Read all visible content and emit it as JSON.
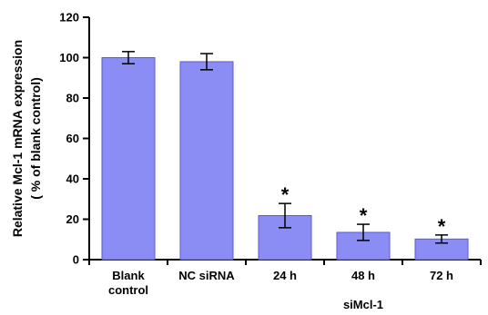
{
  "chart_data": {
    "type": "bar",
    "categories": [
      [
        "Blank",
        "control"
      ],
      [
        "NC siRNA"
      ],
      [
        "24 h"
      ],
      [
        "48 h"
      ],
      [
        "72 h"
      ]
    ],
    "values": [
      100,
      98,
      21.8,
      13.5,
      10.2
    ],
    "errors": [
      3,
      4,
      6,
      4,
      2
    ],
    "significance": [
      "",
      "",
      "*",
      "*",
      "*"
    ],
    "group_label": "siMcl-1",
    "group_span": [
      2,
      4
    ],
    "ylabel": [
      "Relative Mcl-1 mRNA expression",
      "( % of blank control)"
    ],
    "xlabel": "",
    "ylim": [
      0,
      120
    ],
    "yticks": [
      0,
      20,
      40,
      60,
      80,
      100,
      120
    ],
    "grid": false,
    "legend": "none",
    "colors": {
      "bar_fill": "#8c8cf5",
      "bar_stroke": "#5a5ad0",
      "axis": "#000000"
    }
  }
}
